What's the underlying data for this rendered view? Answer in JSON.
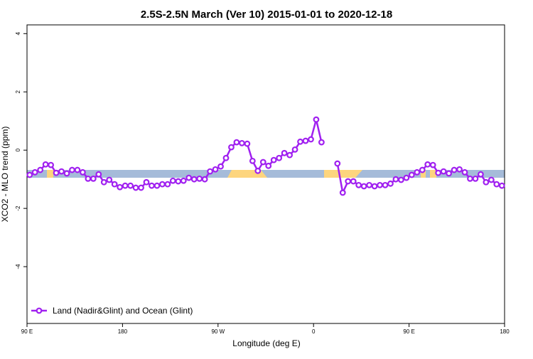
{
  "chart_data": {
    "type": "line",
    "title": "2.5S-2.5N March (Ver 10)   2015-01-01 to 2020-12-18",
    "x_label": "Longitude (deg E)",
    "y_label": "XCO2 - MLO trend (ppm)",
    "x": [
      92.5,
      97.5,
      102.5,
      107.5,
      112.5,
      117.5,
      122.5,
      127.5,
      132.5,
      137.5,
      142.5,
      147.5,
      152.5,
      157.5,
      162.5,
      167.5,
      172.5,
      177.5,
      182.5,
      187.5,
      192.5,
      197.5,
      202.5,
      207.5,
      212.5,
      217.5,
      222.5,
      227.5,
      232.5,
      237.5,
      242.5,
      247.5,
      252.5,
      257.5,
      262.5,
      267.5,
      272.5,
      277.5,
      282.5,
      287.5,
      292.5,
      297.5,
      302.5,
      307.5,
      312.5,
      317.5,
      322.5,
      327.5,
      332.5,
      337.5,
      342.5,
      347.5,
      352.5,
      357.5,
      362.5,
      367.5,
      372.5,
      377.5,
      382.5,
      387.5,
      392.5,
      397.5,
      402.5,
      407.5,
      412.5,
      417.5,
      422.5,
      427.5,
      432.5,
      437.5,
      442.5,
      447.5,
      452.5,
      457.5,
      462.5,
      467.5,
      472.5,
      477.5,
      482.5,
      487.5,
      492.5,
      497.5,
      502.5,
      507.5,
      512.5,
      517.5,
      522.5,
      527.5,
      532.5,
      537.5
    ],
    "series": [
      {
        "name": "Land (Nadir&Glint) and Ocean (Glint)",
        "color": "#a020f0",
        "values": [
          -0.85,
          -0.76,
          -0.68,
          -0.49,
          -0.51,
          -0.78,
          -0.73,
          -0.8,
          -0.68,
          -0.68,
          -0.76,
          -0.98,
          -0.98,
          -0.83,
          -1.1,
          -1.02,
          -1.17,
          -1.27,
          -1.22,
          -1.22,
          -1.29,
          -1.29,
          -1.1,
          -1.22,
          -1.22,
          -1.17,
          -1.17,
          -1.05,
          -1.07,
          -1.05,
          -0.95,
          -1.0,
          -0.98,
          -1.0,
          -0.73,
          -0.66,
          -0.56,
          -0.27,
          0.1,
          0.27,
          0.24,
          0.22,
          -0.37,
          -0.71,
          -0.41,
          -0.54,
          -0.34,
          -0.27,
          -0.1,
          -0.17,
          0.02,
          0.29,
          0.32,
          0.37,
          1.05,
          0.27,
          null,
          null,
          -0.46,
          -1.46,
          -1.07,
          -1.07,
          -1.2,
          -1.24,
          -1.2,
          -1.24,
          -1.2,
          -1.2,
          -1.15,
          -1.0,
          -1.02,
          -0.95,
          -0.85,
          -0.76,
          -0.68,
          -0.49,
          -0.51,
          -0.78,
          -0.73,
          -0.8,
          -0.68,
          -0.66,
          -0.76,
          -0.98,
          -0.98,
          -0.83,
          -1.1,
          -1.02,
          -1.17,
          -1.22
        ]
      }
    ],
    "xlim": [
      90,
      540
    ],
    "xticks": [
      {
        "value": 90,
        "label": "90 E"
      },
      180,
      {
        "value": 270,
        "label": "90 W"
      },
      {
        "value": 360,
        "label": "0"
      },
      {
        "value": 450,
        "label": "90 E"
      },
      {
        "value": 540,
        "label": "180"
      }
    ],
    "ylim": [
      -5.95,
      4.3
    ],
    "yticks": [
      -4,
      -2,
      0,
      2,
      4
    ],
    "legend": "bottom-left"
  }
}
